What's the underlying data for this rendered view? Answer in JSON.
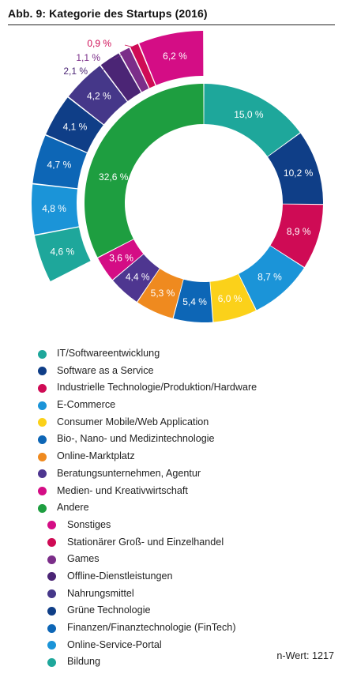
{
  "title": "Abb. 9: Kategorie des Startups (2016)",
  "n_value": "n-Wert: 1217",
  "chart_data": {
    "type": "pie",
    "title": "Abb. 9: Kategorie des Startups (2016)",
    "variant": "donut with exploded breakdown of \"Andere\"",
    "series": [
      {
        "name": "IT/Softwareentwicklung",
        "value": 15.0,
        "label": "15,0 %",
        "color": "#1ea79b"
      },
      {
        "name": "Software as a Service",
        "value": 10.2,
        "label": "10,2 %",
        "color": "#0f3e87"
      },
      {
        "name": "Industrielle Technologie/Produktion/Hardware",
        "value": 8.9,
        "label": "8,9 %",
        "color": "#cf0b55"
      },
      {
        "name": "E-Commerce",
        "value": 8.7,
        "label": "8,7 %",
        "color": "#1b94d8"
      },
      {
        "name": "Consumer Mobile/Web Application",
        "value": 6.0,
        "label": "6,0 %",
        "color": "#fbd11a"
      },
      {
        "name": "Bio-, Nano- und Medizintechnologie",
        "value": 5.4,
        "label": "5,4 %",
        "color": "#0d66b6"
      },
      {
        "name": "Online-Marktplatz",
        "value": 5.3,
        "label": "5,3 %",
        "color": "#ef8a1f"
      },
      {
        "name": "Beratungsunternehmen, Agentur",
        "value": 4.4,
        "label": "4,4 %",
        "color": "#4e3690"
      },
      {
        "name": "Medien- und Kreativwirtschaft",
        "value": 3.6,
        "label": "3,6 %",
        "color": "#d40d85"
      },
      {
        "name": "Andere",
        "value": 32.6,
        "label": "32,6 %",
        "color": "#1e9e40"
      }
    ],
    "breakdown": {
      "of": "Andere",
      "items": [
        {
          "name": "Sonstiges",
          "value": 6.2,
          "label": "6,2 %",
          "color": "#d40d85"
        },
        {
          "name": "Stationärer Groß- und Einzelhandel",
          "value": 0.9,
          "label": "0,9 %",
          "color": "#cf0b55"
        },
        {
          "name": "Games",
          "value": 1.1,
          "label": "1,1 %",
          "color": "#7b2e89"
        },
        {
          "name": "Offline-Dienstleistungen",
          "value": 2.1,
          "label": "2,1 %",
          "color": "#4b2575"
        },
        {
          "name": "Nahrungsmittel",
          "value": 4.2,
          "label": "4,2 %",
          "color": "#453789"
        },
        {
          "name": "Grüne Technologie",
          "value": 4.1,
          "label": "4,1 %",
          "color": "#0f3e87"
        },
        {
          "name": "Finanzen/Finanztechnologie (FinTech)",
          "value": 4.7,
          "label": "4,7 %",
          "color": "#0d66b6"
        },
        {
          "name": "Online-Service-Portal",
          "value": 4.8,
          "label": "4,8 %",
          "color": "#1b94d8"
        },
        {
          "name": "Bildung",
          "value": 4.6,
          "label": "4,6 %",
          "color": "#1ea79b"
        }
      ]
    },
    "legend_placement": "bottom",
    "grid": false
  }
}
